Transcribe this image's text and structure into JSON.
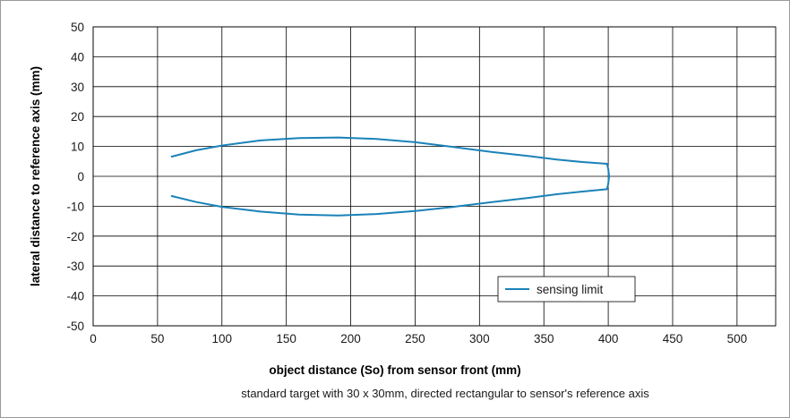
{
  "chart_data": {
    "type": "line",
    "xlabel": "object distance (So) from sensor front (mm)",
    "ylabel": "lateral distance to reference axis (mm)",
    "note": "standard target with 30 x 30mm, directed rectangular to sensor's reference axis",
    "xlim": [
      0,
      530
    ],
    "ylim": [
      -50,
      50
    ],
    "x_ticks": [
      0,
      50,
      100,
      150,
      200,
      250,
      300,
      350,
      400,
      450,
      500
    ],
    "y_ticks": [
      50,
      40,
      30,
      20,
      10,
      0,
      -10,
      -20,
      -30,
      -40,
      -50
    ],
    "x_tick_labels": [
      "0",
      "50",
      "100",
      "150",
      "200",
      "250",
      "300",
      "350",
      "400",
      "450",
      "500"
    ],
    "y_tick_labels": [
      "50",
      "40",
      "30",
      "20",
      "10",
      "0",
      "-10",
      "-20",
      "-30",
      "-40",
      "-50"
    ],
    "grid": true,
    "legend_position": "bottom-right",
    "color": "#1a82b8",
    "series": [
      {
        "name": "sensing limit",
        "points": [
          [
            61,
            6.6
          ],
          [
            80,
            8.7
          ],
          [
            100,
            10.3
          ],
          [
            130,
            12.0
          ],
          [
            160,
            12.8
          ],
          [
            190,
            13.0
          ],
          [
            220,
            12.5
          ],
          [
            250,
            11.4
          ],
          [
            280,
            9.8
          ],
          [
            310,
            8.1
          ],
          [
            340,
            6.7
          ],
          [
            360,
            5.6
          ],
          [
            380,
            4.8
          ],
          [
            399,
            4.2
          ],
          [
            400,
            2.5
          ],
          [
            400.6,
            0
          ],
          [
            400,
            -2.5
          ],
          [
            399,
            -4.3
          ],
          [
            380,
            -5.1
          ],
          [
            360,
            -6.0
          ],
          [
            340,
            -7.1
          ],
          [
            310,
            -8.6
          ],
          [
            280,
            -10.2
          ],
          [
            250,
            -11.6
          ],
          [
            220,
            -12.6
          ],
          [
            190,
            -13.1
          ],
          [
            160,
            -12.8
          ],
          [
            130,
            -11.8
          ],
          [
            100,
            -10.2
          ],
          [
            80,
            -8.6
          ],
          [
            61,
            -6.6
          ]
        ]
      }
    ]
  }
}
